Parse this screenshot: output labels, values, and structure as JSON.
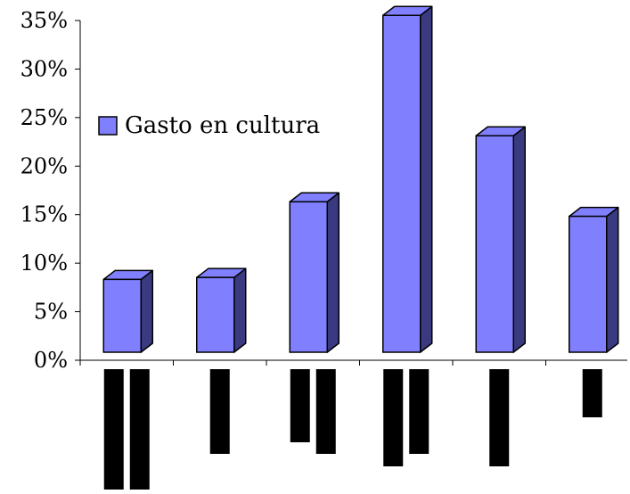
{
  "chart_data": {
    "type": "bar",
    "style": "3d-column",
    "categories": [
      "",
      "",
      "",
      "",
      "",
      ""
    ],
    "series": [
      {
        "name": "Gasto en cultura",
        "values": [
          7.5,
          7.7,
          15.5,
          34.7,
          22.3,
          14.0
        ],
        "color": "#8080ff",
        "side_color": "#3a3a80"
      }
    ],
    "y_tick_labels": [
      "0%",
      "5%",
      "10%",
      "15%",
      "20%",
      "25%",
      "30%",
      "35%"
    ],
    "ylim": [
      0,
      35
    ],
    "grid": false,
    "legend": {
      "placement": "left-middle"
    },
    "category_label_redactions": [
      [
        1.0,
        1.0
      ],
      [
        0.7
      ],
      [
        0.6,
        0.7
      ],
      [
        0.8,
        0.7
      ],
      [
        0.8
      ],
      [
        0.4
      ]
    ],
    "title": "",
    "xlabel": "",
    "ylabel": ""
  }
}
